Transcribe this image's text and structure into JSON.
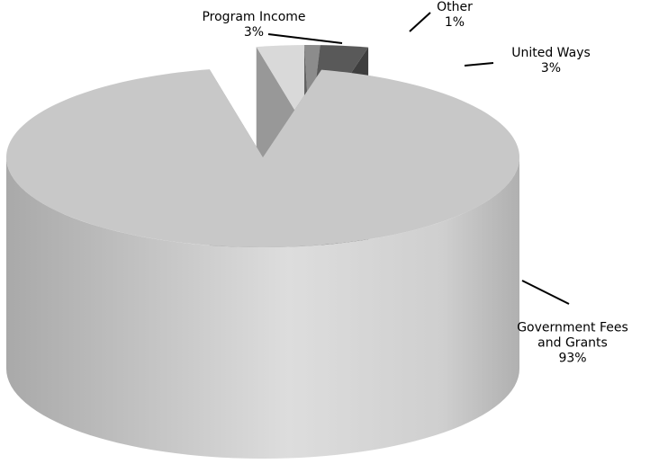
{
  "chart_data": {
    "type": "pie3d",
    "categories": [
      "Program Income",
      "Other",
      "United Ways",
      "Government Fees and Grants"
    ],
    "values": [
      3,
      1,
      3,
      93
    ],
    "value_labels": [
      "3%",
      "1%",
      "3%",
      "93%"
    ],
    "colors": [
      "#d9d9d9",
      "#8c8c8c",
      "#595959",
      "#c8c8c8"
    ]
  }
}
